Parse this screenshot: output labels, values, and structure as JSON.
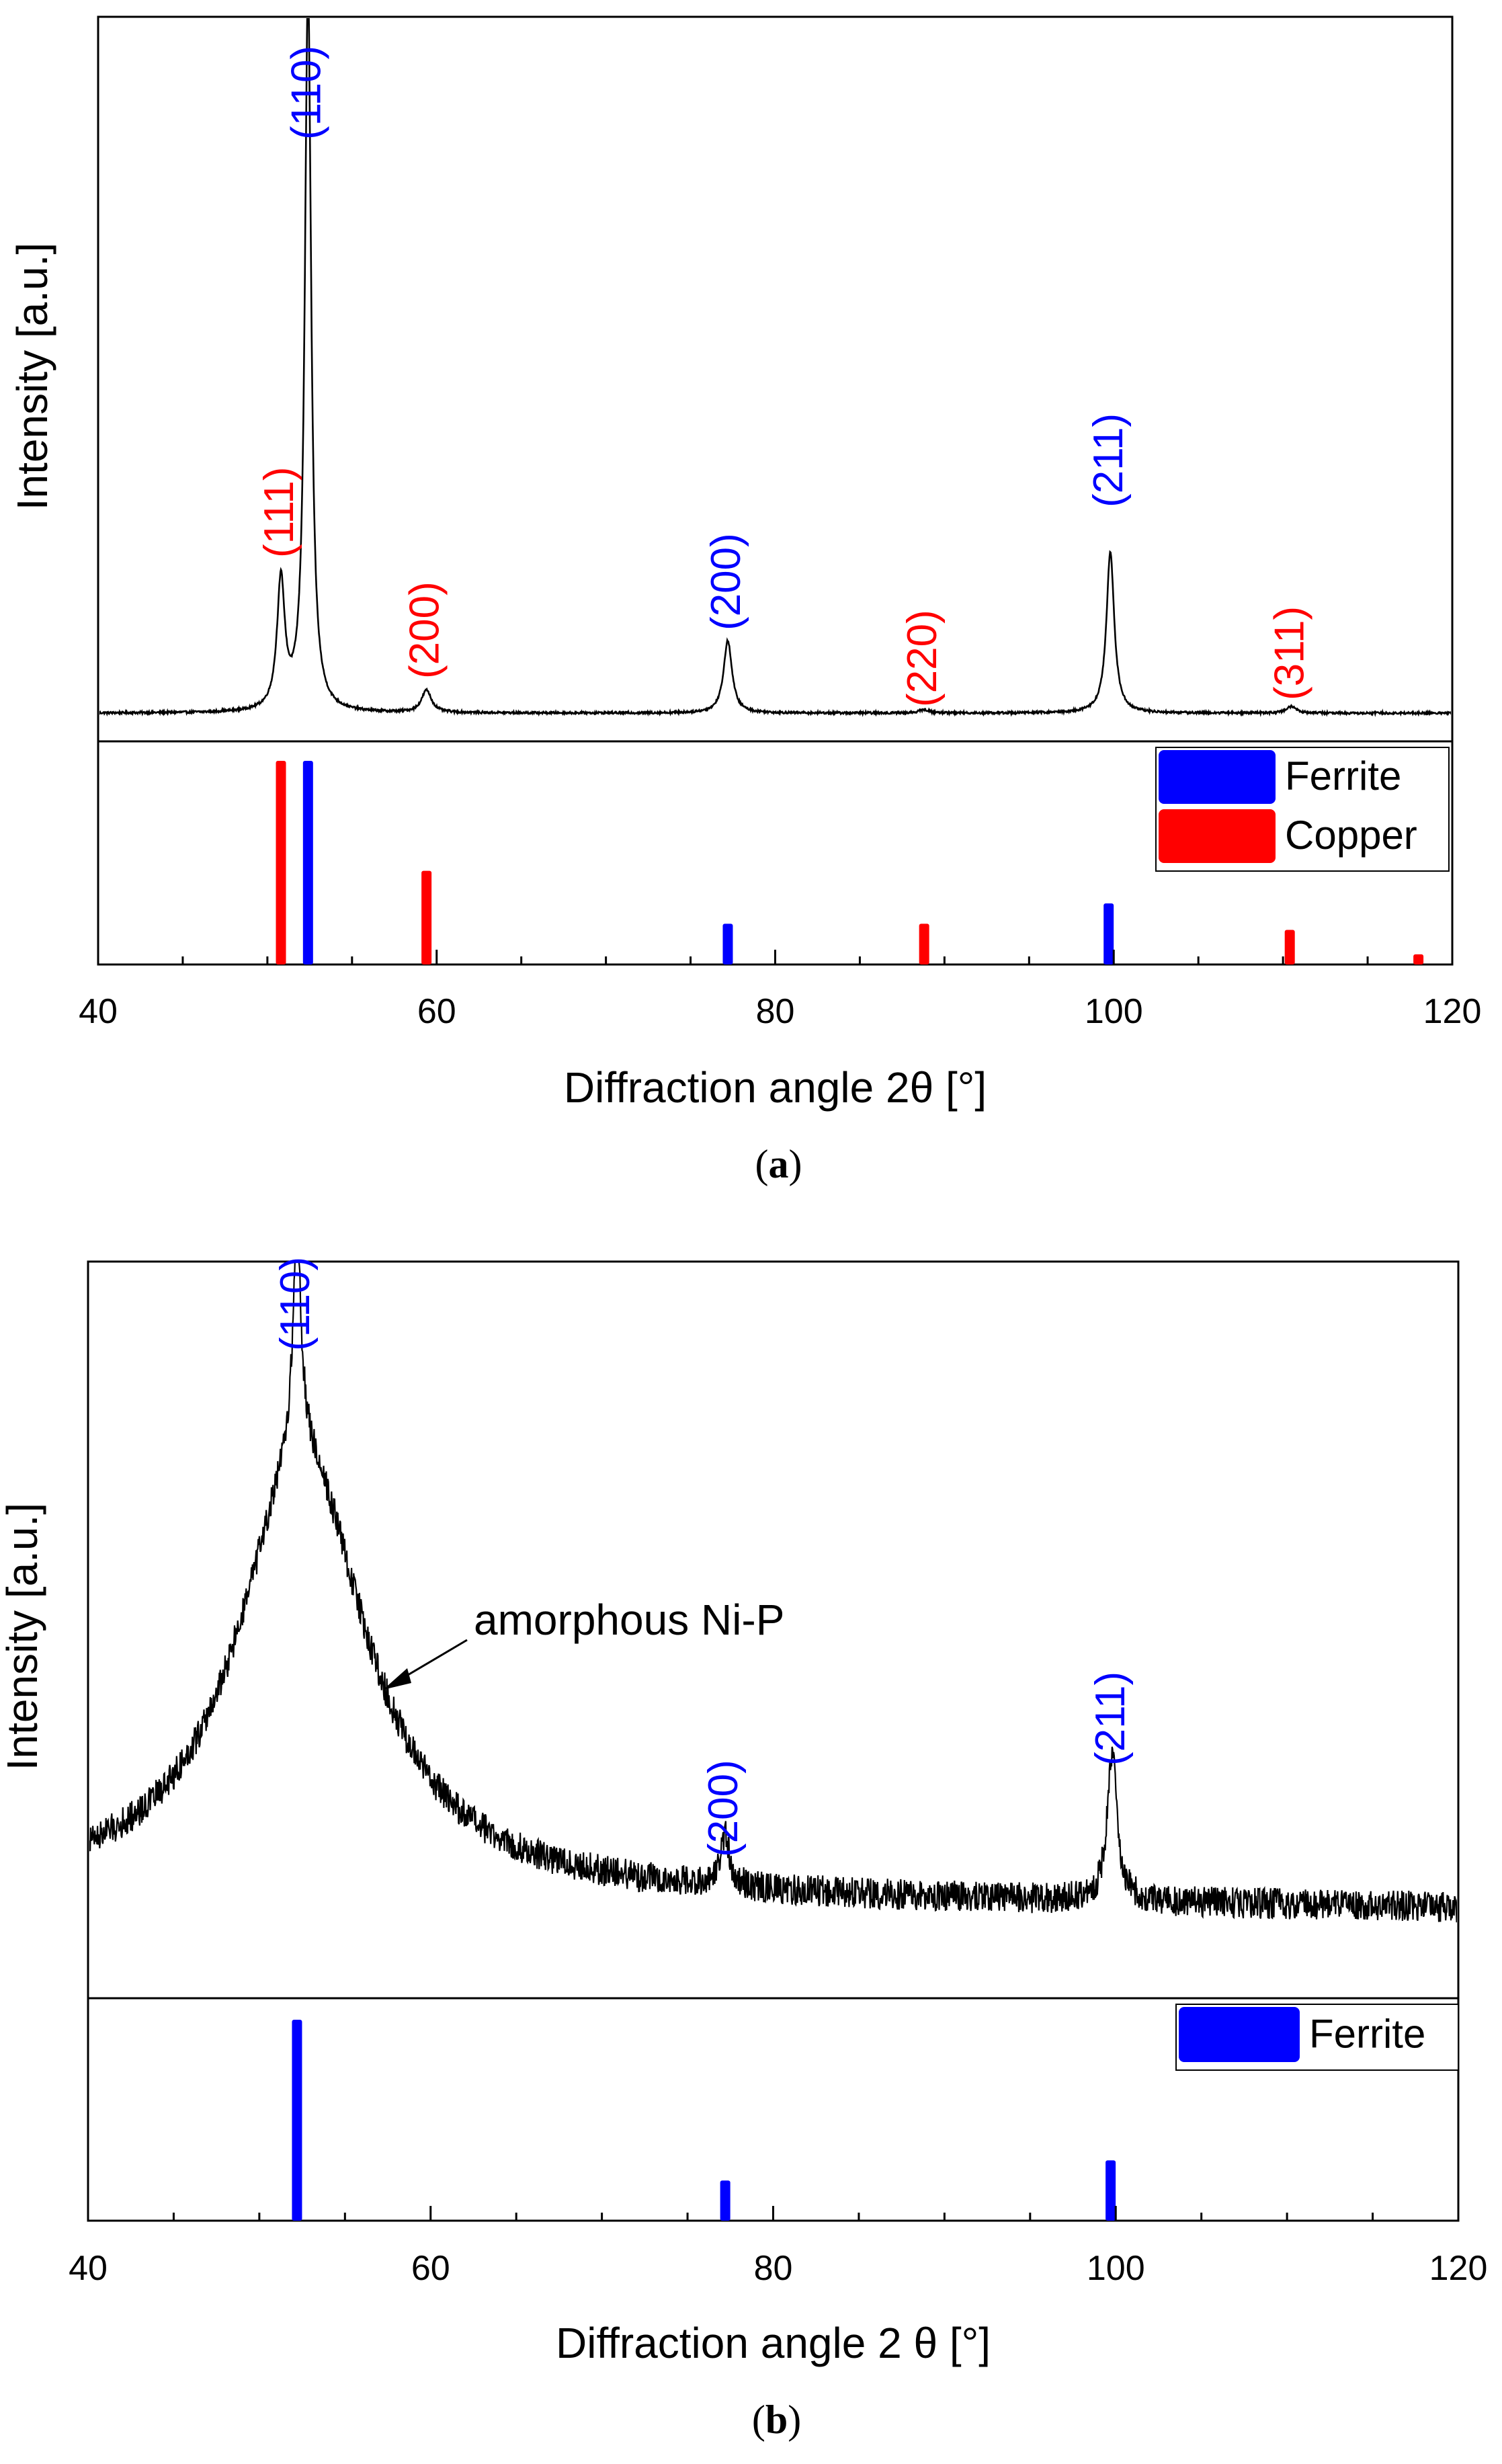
{
  "colors": {
    "ferrite": "#0000ff",
    "copper": "#ff0000",
    "trace": "#000000",
    "axis": "#000000"
  },
  "chart_data": [
    {
      "panel": "a",
      "caption_label": "a",
      "type": "line",
      "xlabel": "Diffraction angle 2θ [°]",
      "ylabel": "Intensity [a.u.]",
      "xlim": [
        40,
        120
      ],
      "x_ticks": [
        40,
        60,
        80,
        100,
        120
      ],
      "x_tick_labels": [
        "40",
        "60",
        "80",
        "100",
        "120"
      ],
      "y_unit": "relative intensity (arbitrary, 0 = baseline, 1 = strongest reflection)",
      "series": [
        {
          "name": "measured pattern",
          "peaks": [
            {
              "x": 50.8,
              "height": 0.23,
              "fwhm": 0.55
            },
            {
              "x": 52.4,
              "height": 1.3,
              "fwhm": 0.45
            },
            {
              "x": 59.4,
              "height": 0.04,
              "fwhm": 0.7
            },
            {
              "x": 77.2,
              "height": 0.13,
              "fwhm": 0.6
            },
            {
              "x": 88.8,
              "height": 0.006,
              "fwhm": 0.7
            },
            {
              "x": 99.8,
              "height": 0.29,
              "fwhm": 0.55
            },
            {
              "x": 110.5,
              "height": 0.012,
              "fwhm": 0.7
            }
          ],
          "amorphous_hump": null,
          "baseline": 0.0,
          "noise": 0.002
        }
      ],
      "peak_labels": [
        {
          "text": "(111)",
          "x": 50.8,
          "phase": "Copper"
        },
        {
          "text": "(110)",
          "x": 52.4,
          "phase": "Ferrite"
        },
        {
          "text": "(200)",
          "x": 59.4,
          "phase": "Copper"
        },
        {
          "text": "(200)",
          "x": 77.2,
          "phase": "Ferrite"
        },
        {
          "text": "(220)",
          "x": 88.8,
          "phase": "Copper"
        },
        {
          "text": "(211)",
          "x": 99.8,
          "phase": "Ferrite"
        },
        {
          "text": "(311)",
          "x": 110.5,
          "phase": "Copper"
        }
      ],
      "reference": {
        "legend": [
          {
            "name": "Ferrite",
            "color": "#0000ff"
          },
          {
            "name": "Copper",
            "color": "#ff0000"
          }
        ],
        "legend_position": "top-right",
        "sticks": [
          {
            "x": 50.8,
            "intensity": 1.0,
            "phase": "Copper"
          },
          {
            "x": 52.4,
            "intensity": 1.0,
            "phase": "Ferrite"
          },
          {
            "x": 59.4,
            "intensity": 0.46,
            "phase": "Copper"
          },
          {
            "x": 77.2,
            "intensity": 0.2,
            "phase": "Ferrite"
          },
          {
            "x": 88.8,
            "intensity": 0.2,
            "phase": "Copper"
          },
          {
            "x": 99.7,
            "intensity": 0.3,
            "phase": "Ferrite"
          },
          {
            "x": 110.4,
            "intensity": 0.17,
            "phase": "Copper"
          },
          {
            "x": 118.0,
            "intensity": 0.05,
            "phase": "Copper"
          }
        ]
      }
    },
    {
      "panel": "b",
      "caption_label": "b",
      "type": "line",
      "xlabel": "Diffraction angle 2 θ [°]",
      "ylabel": "Intensity [a.u.]",
      "xlim": [
        40,
        120
      ],
      "x_ticks": [
        40,
        60,
        80,
        100,
        120
      ],
      "x_tick_labels": [
        "40",
        "60",
        "80",
        "100",
        "120"
      ],
      "y_unit": "relative intensity (arbitrary, 0 = baseline, 1 = hump maximum)",
      "series": [
        {
          "name": "measured pattern",
          "peaks": [
            {
              "x": 52.2,
              "height": 0.5,
              "fwhm": 0.6
            },
            {
              "x": 77.2,
              "height": 0.12,
              "fwhm": 0.6
            },
            {
              "x": 99.8,
              "height": 0.34,
              "fwhm": 0.7
            }
          ],
          "amorphous_hump": {
            "x": 52.5,
            "height": 1.0,
            "fwhm": 9.0
          },
          "baseline": 0.03,
          "noise": 0.035
        }
      ],
      "peak_labels": [
        {
          "text": "(110)",
          "x": 52.2,
          "phase": "Ferrite"
        },
        {
          "text": "(200)",
          "x": 77.2,
          "phase": "Ferrite"
        },
        {
          "text": "(211)",
          "x": 99.8,
          "phase": "Ferrite"
        }
      ],
      "annotation": {
        "text": "amorphous Ni-P",
        "points_to_x": 57.0
      },
      "reference": {
        "legend": [
          {
            "name": "Ferrite",
            "color": "#0000ff"
          }
        ],
        "legend_position": "top-right",
        "sticks": [
          {
            "x": 52.2,
            "intensity": 1.0,
            "phase": "Ferrite"
          },
          {
            "x": 77.2,
            "intensity": 0.2,
            "phase": "Ferrite"
          },
          {
            "x": 99.7,
            "intensity": 0.3,
            "phase": "Ferrite"
          }
        ]
      }
    }
  ]
}
